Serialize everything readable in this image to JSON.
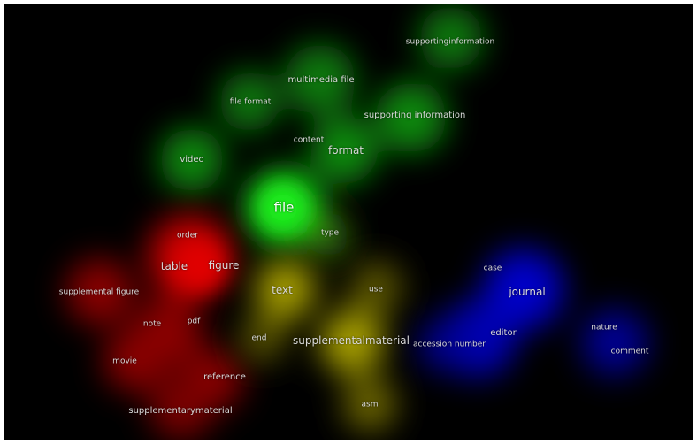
{
  "colors": {
    "background": "#000000",
    "cluster_red": "#e00000",
    "cluster_green": "#00d000",
    "cluster_blue": "#0000e8",
    "cluster_yellow": "#c8c000",
    "label_text": "#d9d9d9"
  },
  "terms": {
    "supportinginformation": "supportinginformation",
    "multimedia_file": "multimedia file",
    "file_format": "file format",
    "supporting_information": "supporting information",
    "content": "content",
    "format": "format",
    "video": "video",
    "file": "file",
    "type": "type",
    "order": "order",
    "table": "table",
    "figure": "figure",
    "supplemental_figure": "supplemental figure",
    "text": "text",
    "use": "use",
    "case": "case",
    "journal": "journal",
    "note": "note",
    "pdf": "pdf",
    "end": "end",
    "supplementalmaterial": "supplementalmaterial",
    "accession_number": "accession number",
    "editor": "editor",
    "nature": "nature",
    "comment": "comment",
    "movie": "movie",
    "reference": "reference",
    "supplementarymaterial": "supplementarymaterial",
    "asm": "asm"
  }
}
